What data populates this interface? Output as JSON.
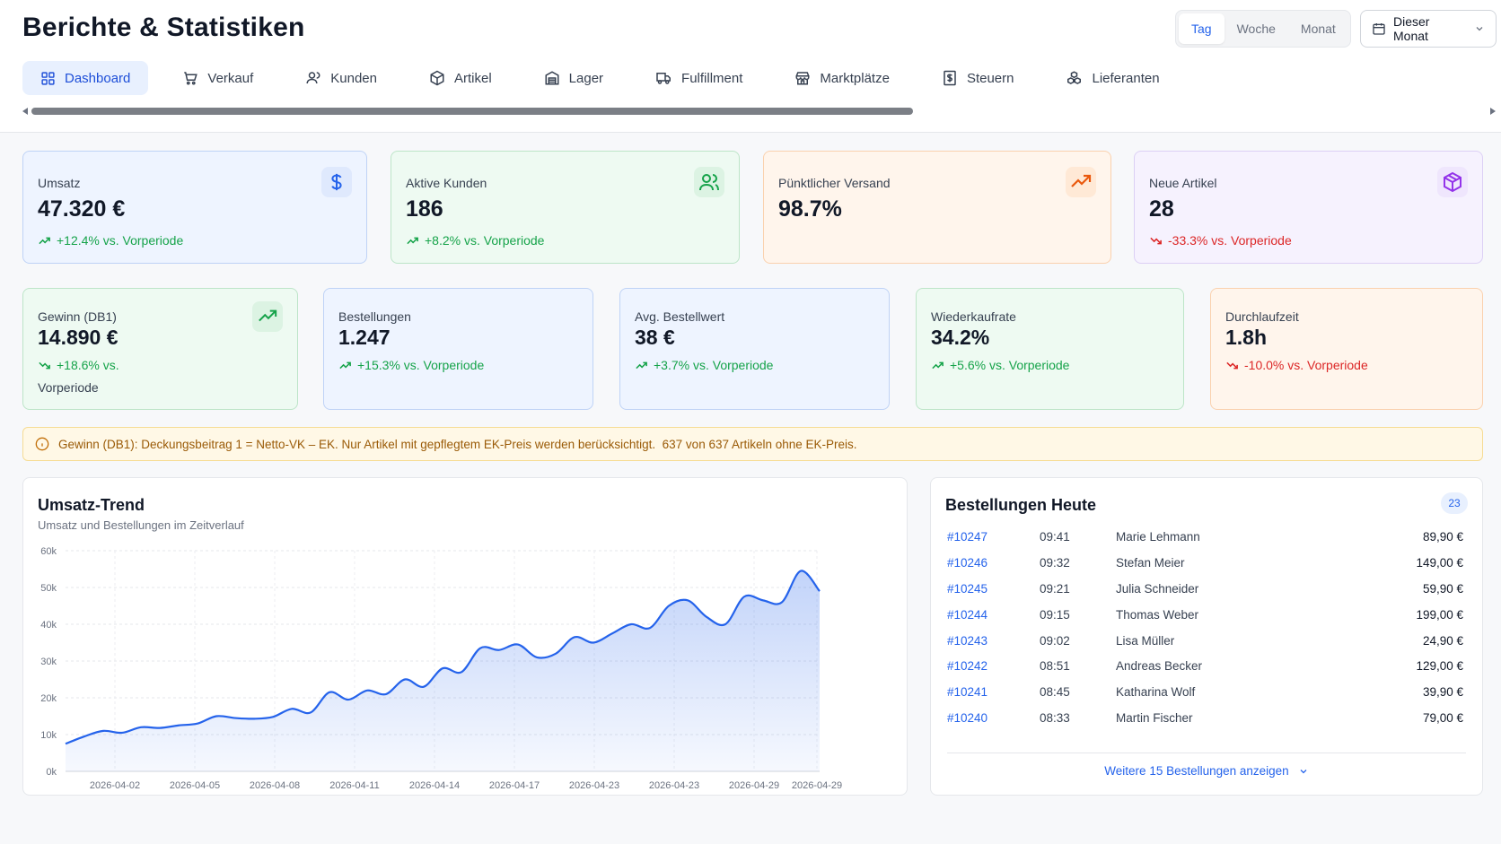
{
  "header": {
    "title": "Berichte & Statistiken",
    "period_options": [
      "Tag",
      "Woche",
      "Monat"
    ],
    "period_active": "Tag",
    "date_range": "Dieser Monat"
  },
  "tabs": [
    {
      "label": "Dashboard",
      "icon": "grid-icon",
      "active": true
    },
    {
      "label": "Verkauf",
      "icon": "cart-icon",
      "active": false
    },
    {
      "label": "Kunden",
      "icon": "user-icon",
      "active": false
    },
    {
      "label": "Artikel",
      "icon": "box-icon",
      "active": false
    },
    {
      "label": "Lager",
      "icon": "warehouse-icon",
      "active": false
    },
    {
      "label": "Fulfillment",
      "icon": "truck-icon",
      "active": false
    },
    {
      "label": "Marktplätze",
      "icon": "store-icon",
      "active": false
    },
    {
      "label": "Steuern",
      "icon": "receipt-icon",
      "active": false
    },
    {
      "label": "Lieferanten",
      "icon": "boxes-icon",
      "active": false
    }
  ],
  "kpi_row1": [
    {
      "label": "Umsatz",
      "value": "47.320 €",
      "change": "+12.4% vs. Vorperiode",
      "trend": "up",
      "icon": "dollar-icon",
      "accent": "#2563eb"
    },
    {
      "label": "Aktive Kunden",
      "value": "186",
      "change": "+8.2% vs. Vorperiode",
      "trend": "up",
      "icon": "users-icon",
      "accent": "#16a34a"
    },
    {
      "label": "Pünktlicher Versand",
      "value": "98.7%",
      "change": "",
      "trend": "up",
      "icon": "trending-up-icon",
      "accent": "#ea580c"
    },
    {
      "label": "Neue Artikel",
      "value": "28",
      "change": "-33.3% vs. Vorperiode",
      "trend": "down",
      "icon": "package-icon",
      "accent": "#9333ea"
    }
  ],
  "kpi_row2": [
    {
      "label": "Gewinn (DB1)",
      "value": "14.890 €",
      "change_line1": "+18.6% vs.",
      "change_line2": "Vorperiode",
      "trend": "up",
      "icon": "trending-up-icon"
    },
    {
      "label": "Bestellungen",
      "value": "1.247",
      "change": "+15.3% vs. Vorperiode",
      "trend": "up"
    },
    {
      "label": "Avg. Bestellwert",
      "value": "38 €",
      "change": "+3.7% vs. Vorperiode",
      "trend": "up"
    },
    {
      "label": "Wiederkaufrate",
      "value": "34.2%",
      "change": "+5.6% vs. Vorperiode",
      "trend": "up"
    },
    {
      "label": "Durchlaufzeit",
      "value": "1.8h",
      "change": "-10.0% vs. Vorperiode",
      "trend": "down"
    }
  ],
  "notice": {
    "text": "Gewinn (DB1): Deckungsbeitrag 1 = Netto-VK – EK. Nur Artikel mit gepflegtem EK-Preis werden berücksichtigt.  637 von 637 Artikeln ohne EK-Preis.",
    "icon": "info-icon"
  },
  "trend_panel": {
    "title": "Umsatz-Trend",
    "subtitle": "Umsatz und Bestellungen im Zeitverlauf"
  },
  "chart_data": {
    "type": "area",
    "title": "Umsatz-Trend",
    "subtitle": "Umsatz und Bestellungen im Zeitverlauf",
    "ylim": [
      0,
      60000
    ],
    "yticks": [
      "0k",
      "10k",
      "20k",
      "30k",
      "40k",
      "50k",
      "60k"
    ],
    "xticks": [
      "2026-04-02",
      "2026-04-05",
      "2026-04-08",
      "2026-04-11",
      "2026-04-14",
      "2026-04-17",
      "2026-04-23",
      "2026-04-23",
      "2026-04-29",
      "2026-04-29"
    ],
    "grid": true,
    "color": "#2563eb",
    "series": [
      {
        "values": [
          7500,
          9500,
          11000,
          10500,
          12000,
          11800,
          12500,
          13000,
          15000,
          14500,
          14300,
          14800,
          17000,
          16000,
          21500,
          19500,
          22000,
          21000,
          25000,
          23000,
          28000,
          27000,
          33500,
          33000,
          34500,
          31000,
          32000,
          36500,
          35000,
          37500,
          40000,
          39000,
          45000,
          46500,
          42000,
          40000,
          47500,
          46500,
          46000,
          54500,
          49000
        ]
      }
    ]
  },
  "orders_panel": {
    "title": "Bestellungen Heute",
    "count": "23",
    "orders": [
      {
        "id": "#10247",
        "time": "09:41",
        "name": "Marie Lehmann",
        "amount": "89,90 €"
      },
      {
        "id": "#10246",
        "time": "09:32",
        "name": "Stefan Meier",
        "amount": "149,00 €"
      },
      {
        "id": "#10245",
        "time": "09:21",
        "name": "Julia Schneider",
        "amount": "59,90 €"
      },
      {
        "id": "#10244",
        "time": "09:15",
        "name": "Thomas Weber",
        "amount": "199,00 €"
      },
      {
        "id": "#10243",
        "time": "09:02",
        "name": "Lisa Müller",
        "amount": "24,90 €"
      },
      {
        "id": "#10242",
        "time": "08:51",
        "name": "Andreas Becker",
        "amount": "129,00 €"
      },
      {
        "id": "#10241",
        "time": "08:45",
        "name": "Katharina Wolf",
        "amount": "39,90 €"
      },
      {
        "id": "#10240",
        "time": "08:33",
        "name": "Martin Fischer",
        "amount": "79,00 €"
      }
    ],
    "more_label": "Weitere 15 Bestellungen anzeigen"
  }
}
